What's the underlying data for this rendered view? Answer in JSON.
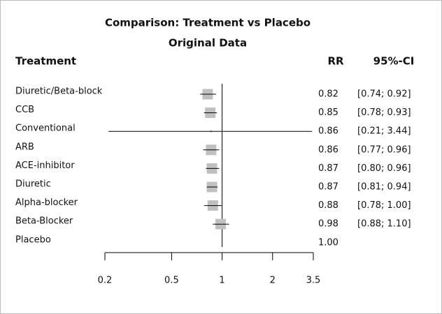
{
  "chart_data": {
    "type": "forest",
    "title": "Comparison: Treatment vs Placebo",
    "subtitle": "Original Data",
    "columns": [
      "Treatment",
      "RR",
      "95%-CI"
    ],
    "categories": [
      "Diuretic/Beta-block",
      "CCB",
      "Conventional",
      "ARB",
      "ACE-inhibitor",
      "Diuretic",
      "Alpha-blocker",
      "Beta-Blocker",
      "Placebo"
    ],
    "values": [
      0.82,
      0.85,
      0.86,
      0.86,
      0.87,
      0.87,
      0.88,
      0.98,
      1
    ],
    "value_labels": [
      "0.82",
      "0.85",
      "0.86",
      "0.86",
      "0.87",
      "0.87",
      "0.88",
      "0.98",
      "1.00"
    ],
    "lower": [
      0.74,
      0.78,
      0.21,
      0.77,
      0.8,
      0.81,
      0.78,
      0.88,
      null
    ],
    "upper": [
      0.92,
      0.93,
      3.44,
      0.96,
      0.96,
      0.94,
      1.0,
      1.1,
      null
    ],
    "ci_labels": [
      "[0.74; 0.92]",
      "[0.78; 0.93]",
      "[0.21; 3.44]",
      "[0.77; 0.96]",
      "[0.80; 0.96]",
      "[0.81; 0.94]",
      "[0.78; 1.00]",
      "[0.88; 1.10]",
      null
    ],
    "xlim": [
      0.2,
      3.5
    ],
    "xticks": [
      0.2,
      0.5,
      1,
      2,
      3.5
    ],
    "xscale": "log",
    "reference": 1,
    "color": "#c0c0c0"
  }
}
